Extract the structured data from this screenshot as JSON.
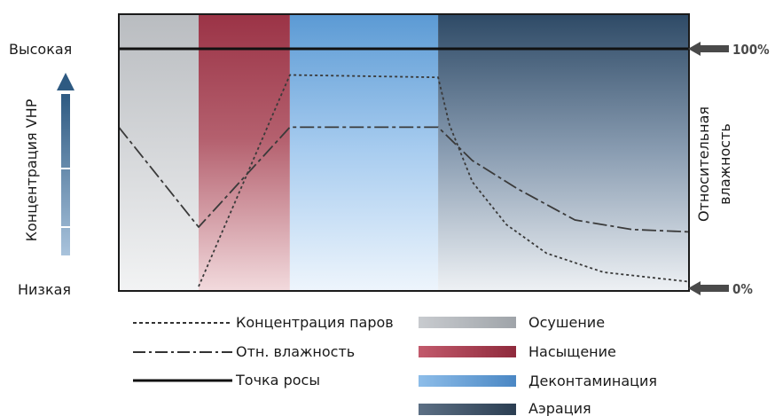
{
  "labels": {
    "high": "Высокая",
    "low": "Низкая",
    "left_axis": "Концентрация VHP",
    "right_axis_line1": "Относительная",
    "right_axis_line2": "влажность",
    "pct_top": "100%",
    "pct_bottom": "0%"
  },
  "legend": {
    "lines": [
      {
        "label": "Концентрация паров",
        "style": "dotted"
      },
      {
        "label": "Отн. влажность",
        "style": "dashdot"
      },
      {
        "label": "Точка росы",
        "style": "solid"
      }
    ],
    "phases": [
      {
        "label": "Осушение",
        "color": "#b9bcc0"
      },
      {
        "label": "Насыщение",
        "color": "#9b3346"
      },
      {
        "label": "Деконтаминация",
        "color": "#5b9ad4"
      },
      {
        "label": "Аэрация",
        "color": "#2e4a66"
      }
    ]
  },
  "chart_data": {
    "type": "line",
    "x_range": [
      0,
      100
    ],
    "y_range": [
      0,
      100
    ],
    "phases": [
      {
        "name": "Осушение",
        "x_start": 0,
        "x_end": 14
      },
      {
        "name": "Насыщение",
        "x_start": 14,
        "x_end": 30
      },
      {
        "name": "Деконтаминация",
        "x_start": 30,
        "x_end": 56
      },
      {
        "name": "Аэрация",
        "x_start": 56,
        "x_end": 100
      }
    ],
    "series": [
      {
        "name": "Концентрация паров",
        "style": "dotted",
        "points": [
          [
            14,
            0
          ],
          [
            30,
            89
          ],
          [
            56,
            88
          ],
          [
            58,
            68
          ],
          [
            62,
            44
          ],
          [
            68,
            26
          ],
          [
            75,
            14
          ],
          [
            85,
            6
          ],
          [
            100,
            2
          ]
        ]
      },
      {
        "name": "Отн. влажность",
        "style": "dashdot",
        "points": [
          [
            0,
            67
          ],
          [
            14,
            25
          ],
          [
            30,
            67
          ],
          [
            56,
            67
          ],
          [
            62,
            53
          ],
          [
            70,
            41
          ],
          [
            80,
            28
          ],
          [
            90,
            24
          ],
          [
            100,
            23
          ]
        ]
      },
      {
        "name": "Точка росы",
        "style": "solid",
        "points": [
          [
            0,
            100
          ],
          [
            100,
            100
          ]
        ]
      }
    ]
  }
}
